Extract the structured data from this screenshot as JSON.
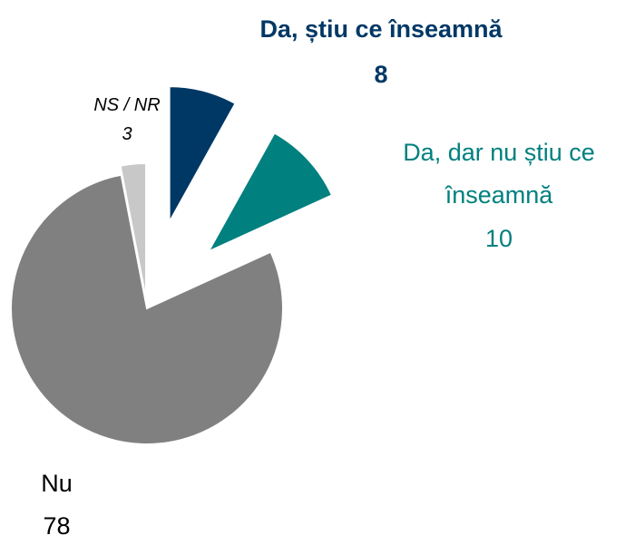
{
  "chart_data": {
    "type": "pie",
    "categories": [
      "Da, știu ce înseamnă",
      "Da, dar nu știu ce înseamnă",
      "Nu",
      "NS / NR"
    ],
    "values": [
      8,
      10,
      78,
      3
    ],
    "colors": [
      "#003865",
      "#00807f",
      "#808080",
      "#c8c8c8"
    ]
  }
}
